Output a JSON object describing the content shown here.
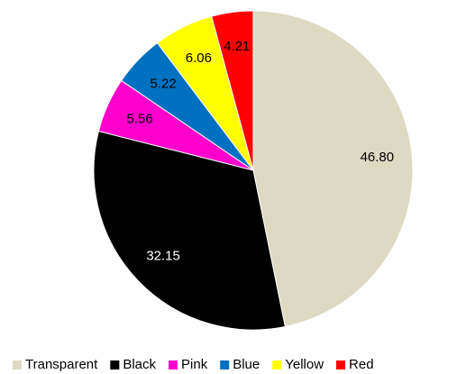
{
  "chart_data": {
    "type": "pie",
    "categories": [
      "Transparent",
      "Black",
      "Pink",
      "Blue",
      "Yellow",
      "Red"
    ],
    "values": [
      46.8,
      32.15,
      5.56,
      5.22,
      6.06,
      4.21
    ],
    "value_labels": [
      "46.80",
      "32.15",
      "5.56",
      "5.22",
      "6.06",
      "4.21"
    ],
    "colors": [
      "#ddd9c3",
      "#000000",
      "#ff00cc",
      "#0070c0",
      "#ffff00",
      "#ff0000"
    ],
    "legend": "bottom"
  }
}
